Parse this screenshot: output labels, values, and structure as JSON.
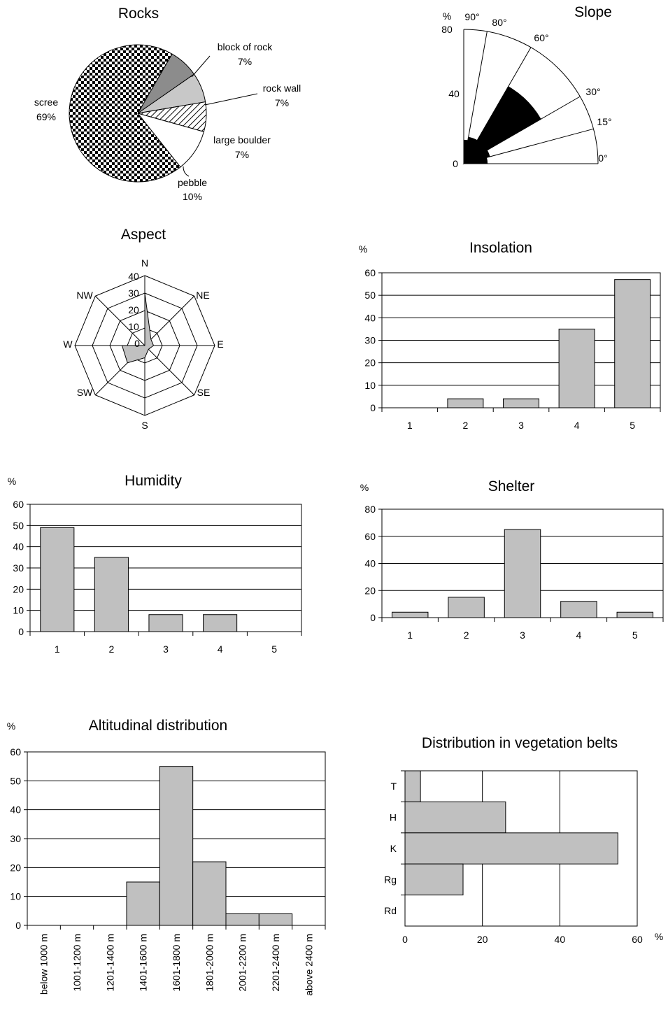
{
  "colors": {
    "bar": "#c0c0c0",
    "axis": "#000000",
    "slope_sector": "#000000",
    "aspect_fill": "#c0c0c0"
  },
  "chart_data": [
    {
      "id": "rocks",
      "type": "pie",
      "title": "Rocks",
      "slices": [
        {
          "label": "block of rock",
          "value": 7,
          "value_label": "7%",
          "fill": "#8c8c8c"
        },
        {
          "label": "rock wall",
          "value": 7,
          "value_label": "7%",
          "fill": "#c8c8c8"
        },
        {
          "label": "large boulder",
          "value": 7,
          "value_label": "7%",
          "fill": "hatch"
        },
        {
          "label": "pebble",
          "value": 10,
          "value_label": "10%",
          "fill": "#ffffff"
        },
        {
          "label": "scree",
          "value": 69,
          "value_label": "69%",
          "fill": "checker"
        }
      ]
    },
    {
      "id": "slope",
      "type": "polar-sector",
      "title": "Slope",
      "unit": "%",
      "radial_ticks": [
        "0",
        "40",
        "80"
      ],
      "angle_ticks": [
        "0°",
        "15°",
        "30°",
        "60°",
        "80°",
        "90°"
      ],
      "sectors": [
        {
          "from": 0,
          "to": 15,
          "value": 14
        },
        {
          "from": 15,
          "to": 30,
          "value": 16
        },
        {
          "from": 30,
          "to": 60,
          "value": 53
        },
        {
          "from": 60,
          "to": 80,
          "value": 16
        },
        {
          "from": 80,
          "to": 90,
          "value": 14
        }
      ]
    },
    {
      "id": "aspect",
      "type": "radar",
      "title": "Aspect",
      "directions": [
        "N",
        "NE",
        "E",
        "SE",
        "S",
        "SW",
        "W",
        "NW"
      ],
      "ticks": [
        "0",
        "10",
        "20",
        "30",
        "40"
      ],
      "values": [
        30,
        5,
        5,
        3,
        7,
        14,
        13,
        0
      ]
    },
    {
      "id": "insolation",
      "type": "bar",
      "title": "Insolation",
      "ylabel": "%",
      "categories": [
        "1",
        "2",
        "3",
        "4",
        "5"
      ],
      "values": [
        0,
        4,
        4,
        35,
        57
      ],
      "ylim": [
        0,
        60
      ],
      "yticks": [
        "0",
        "10",
        "20",
        "30",
        "40",
        "50",
        "60"
      ]
    },
    {
      "id": "humidity",
      "type": "bar",
      "title": "Humidity",
      "ylabel": "%",
      "categories": [
        "1",
        "2",
        "3",
        "4",
        "5"
      ],
      "values": [
        49,
        35,
        8,
        8,
        0
      ],
      "ylim": [
        0,
        60
      ],
      "yticks": [
        "0",
        "10",
        "20",
        "30",
        "40",
        "50",
        "60"
      ]
    },
    {
      "id": "shelter",
      "type": "bar",
      "title": "Shelter",
      "ylabel": "%",
      "categories": [
        "1",
        "2",
        "3",
        "4",
        "5"
      ],
      "values": [
        4,
        15,
        65,
        12,
        4
      ],
      "ylim": [
        0,
        80
      ],
      "yticks": [
        "0",
        "20",
        "40",
        "60",
        "80"
      ]
    },
    {
      "id": "altitude",
      "type": "bar",
      "title": "Altitudinal distribution",
      "ylabel": "%",
      "categories": [
        "below 1000 m",
        "1001-1200 m",
        "1201-1400 m",
        "1401-1600 m",
        "1601-1800 m",
        "1801-2000 m",
        "2001-2200 m",
        "2201-2400 m",
        "above 2400 m"
      ],
      "values": [
        0,
        0,
        0,
        15,
        55,
        22,
        4,
        4,
        0
      ],
      "ylim": [
        0,
        60
      ],
      "yticks": [
        "0",
        "10",
        "20",
        "30",
        "40",
        "50",
        "60"
      ]
    },
    {
      "id": "vegetation",
      "type": "bar-horizontal",
      "title": "Distribution in vegetation belts",
      "xlabel": "%",
      "categories": [
        "T",
        "H",
        "K",
        "Rg",
        "Rd"
      ],
      "values": [
        4,
        26,
        55,
        15,
        0
      ],
      "xlim": [
        0,
        60
      ],
      "xticks": [
        "0",
        "20",
        "40",
        "60"
      ]
    }
  ]
}
